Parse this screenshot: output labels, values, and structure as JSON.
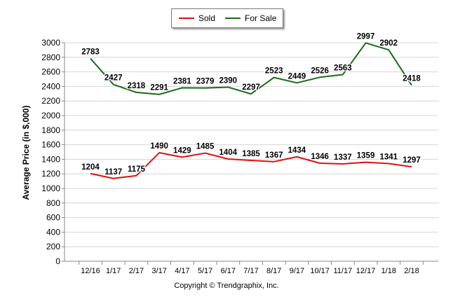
{
  "chart_data": {
    "type": "line",
    "categories": [
      "12/16",
      "1/17",
      "2/17",
      "3/17",
      "4/17",
      "5/17",
      "6/17",
      "7/17",
      "8/17",
      "9/17",
      "10/17",
      "11/17",
      "12/17",
      "1/18",
      "2/18"
    ],
    "series": [
      {
        "name": "Sold",
        "color": "#e01010",
        "values": [
          1204,
          1137,
          1175,
          1490,
          1429,
          1485,
          1404,
          1385,
          1367,
          1434,
          1346,
          1337,
          1359,
          1341,
          1297
        ]
      },
      {
        "name": "For Sale",
        "color": "#1a6b1a",
        "values": [
          2783,
          2427,
          2318,
          2291,
          2381,
          2379,
          2390,
          2297,
          2523,
          2449,
          2526,
          2563,
          2997,
          2902,
          2418
        ]
      }
    ],
    "ylabel": "Average Price (in $,000)",
    "xlabel": "",
    "ylim": [
      0,
      3000
    ],
    "yticks": [
      0,
      200,
      400,
      600,
      800,
      1000,
      1200,
      1400,
      1600,
      1800,
      2000,
      2200,
      2400,
      2600,
      2800,
      3000
    ],
    "legend": "top-center",
    "grid": true,
    "copyright": "Copyright © Trendgraphix, Inc."
  }
}
